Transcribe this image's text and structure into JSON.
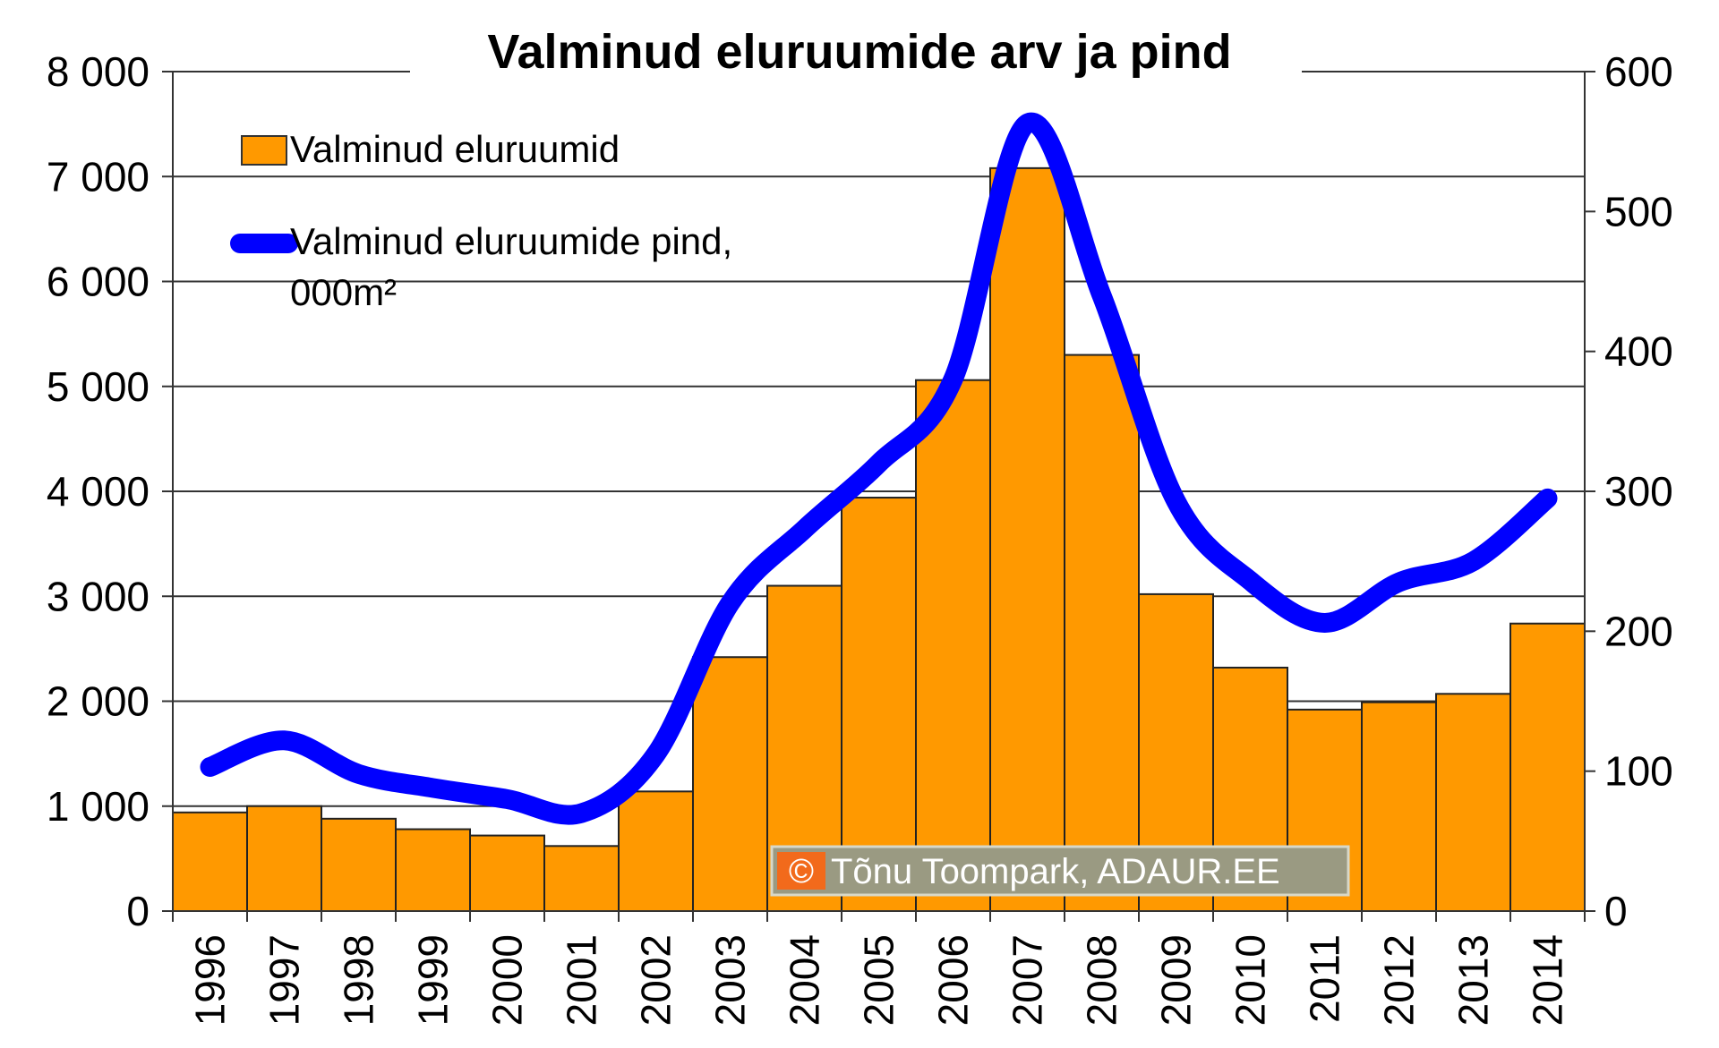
{
  "chart_data": {
    "type": "bar",
    "title": "Valminud eluruumide arv ja pind",
    "categories": [
      "1996",
      "1997",
      "1998",
      "1999",
      "2000",
      "2001",
      "2002",
      "2003",
      "2004",
      "2005",
      "2006",
      "2007",
      "2008",
      "2009",
      "2010",
      "2011",
      "2012",
      "2013",
      "2014"
    ],
    "series": [
      {
        "name": "Valminud eluruumid",
        "type": "bar",
        "axis": "left",
        "color": "#ff9900",
        "values": [
          940,
          1000,
          880,
          780,
          720,
          620,
          1140,
          2420,
          3100,
          3940,
          5060,
          7080,
          5300,
          3020,
          2320,
          1920,
          1990,
          2070,
          2740
        ]
      },
      {
        "name_lines": [
          "Valminud eluruumide pind,",
          "000m²"
        ],
        "type": "line",
        "axis": "right",
        "color": "#0000ff",
        "values": [
          103,
          122,
          98,
          88,
          80,
          70,
          112,
          220,
          273,
          320,
          380,
          563,
          440,
          293,
          236,
          206,
          235,
          250,
          295
        ]
      }
    ],
    "y_left": {
      "ylim": [
        0,
        8000
      ],
      "ticks": [
        0,
        1000,
        2000,
        3000,
        4000,
        5000,
        6000,
        7000,
        8000
      ],
      "tick_labels": [
        "0",
        "1 000",
        "2 000",
        "3 000",
        "4 000",
        "5 000",
        "6 000",
        "7 000",
        "8 000"
      ]
    },
    "y_right": {
      "ylim": [
        0,
        600
      ],
      "ticks": [
        0,
        100,
        200,
        300,
        400,
        500,
        600
      ],
      "tick_labels": [
        "0",
        "100",
        "200",
        "300",
        "400",
        "500",
        "600"
      ]
    },
    "grid": true,
    "legend_position": "top-left",
    "watermark": {
      "symbol": "©",
      "text": "Tõnu Toompark, ADAUR.EE"
    }
  }
}
